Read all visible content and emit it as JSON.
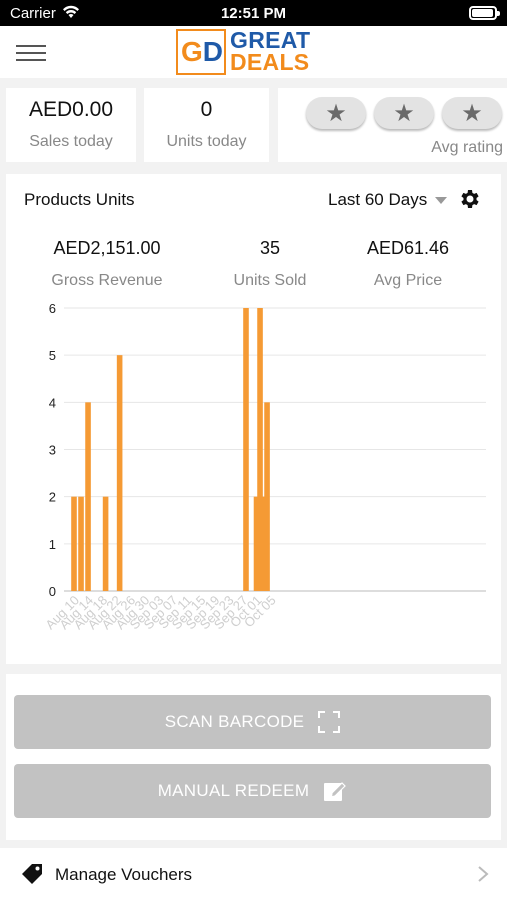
{
  "status_bar": {
    "carrier": "Carrier",
    "time": "12:51 PM"
  },
  "header": {
    "logo_letters": [
      "G",
      "D"
    ],
    "logo_line1": "GREAT",
    "logo_line2": "DEALS"
  },
  "stats": {
    "sales_today": {
      "value": "AED0.00",
      "label": "Sales today"
    },
    "units_today": {
      "value": "0",
      "label": "Units today"
    },
    "avg_rating": {
      "label": "Avg rating",
      "stars_visible": 3
    }
  },
  "chart_card": {
    "title": "Products Units",
    "range": "Last 60 Days",
    "summary": [
      {
        "value": "AED2,151.00",
        "label": "Gross Revenue"
      },
      {
        "value": "35",
        "label": "Units Sold"
      },
      {
        "value": "AED61.46",
        "label": "Avg Price"
      }
    ]
  },
  "chart_data": {
    "type": "bar",
    "color": "#f59a34",
    "ylim": [
      0,
      6
    ],
    "yticks": [
      0,
      1,
      2,
      3,
      4,
      5,
      6
    ],
    "xticks": [
      "Aug 10",
      "Aug 14",
      "Aug 18",
      "Aug 22",
      "Aug 26",
      "Aug 30",
      "Sep 03",
      "Sep 07",
      "Sep 11",
      "Sep 15",
      "Sep 19",
      "Sep 23",
      "Sep 27",
      "Oct 01",
      "Oct 05"
    ],
    "x": [
      "Aug 10",
      "Aug 12",
      "Aug 14",
      "Aug 19",
      "Aug 23",
      "Sep 28",
      "Oct 01",
      "Oct 02",
      "Oct 03",
      "Oct 04"
    ],
    "values": [
      2,
      2,
      4,
      2,
      5,
      6,
      2,
      6,
      2,
      4
    ]
  },
  "actions": {
    "scan_label": "SCAN BARCODE",
    "manual_label": "MANUAL REDEEM"
  },
  "vouchers": {
    "label": "Manage Vouchers"
  }
}
